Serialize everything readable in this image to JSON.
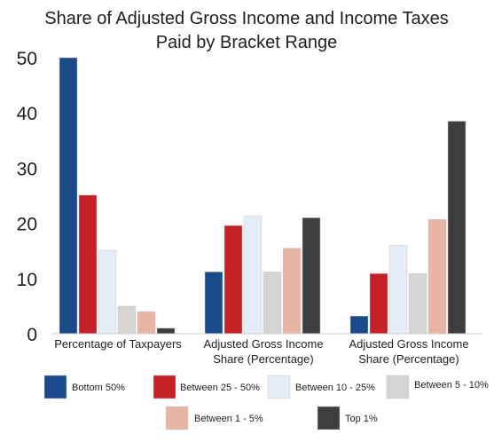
{
  "chart_data": {
    "type": "bar",
    "title_lines": [
      "Share of Adjusted Gross Income and Income Taxes",
      "Paid by Bracket Range"
    ],
    "xlabel": "",
    "ylabel": "",
    "ylim": [
      0,
      50
    ],
    "yticks": [
      0,
      10,
      20,
      30,
      40,
      50
    ],
    "grid": false,
    "legend_position": "bottom",
    "categories": [
      [
        "Percentage of Taxpayers"
      ],
      [
        "Adjusted Gross Income",
        "Share (Percentage)"
      ],
      [
        "Adjusted Gross Income",
        "Share (Percentage)"
      ]
    ],
    "series": [
      {
        "name": "Bottom 50%",
        "color": "#1a4a8a",
        "values": [
          50,
          11.2,
          3.2
        ]
      },
      {
        "name": "Between 25 - 50%",
        "color": "#c42127",
        "values": [
          25.1,
          19.6,
          10.9
        ]
      },
      {
        "name": "Between 10 - 25%",
        "color": "#e4edf6",
        "values": [
          15.1,
          21.3,
          16
        ]
      },
      {
        "name": "Between 5 - 10%",
        "color": "#d4d4d4",
        "values": [
          5,
          11.2,
          10.9
        ]
      },
      {
        "name": "Between 1 - 5%",
        "color": "#e8b4a4",
        "values": [
          4,
          15.5,
          20.7
        ]
      },
      {
        "name": "Top 1%",
        "color": "#3e3e3e",
        "values": [
          1,
          21,
          38.5
        ]
      }
    ]
  }
}
